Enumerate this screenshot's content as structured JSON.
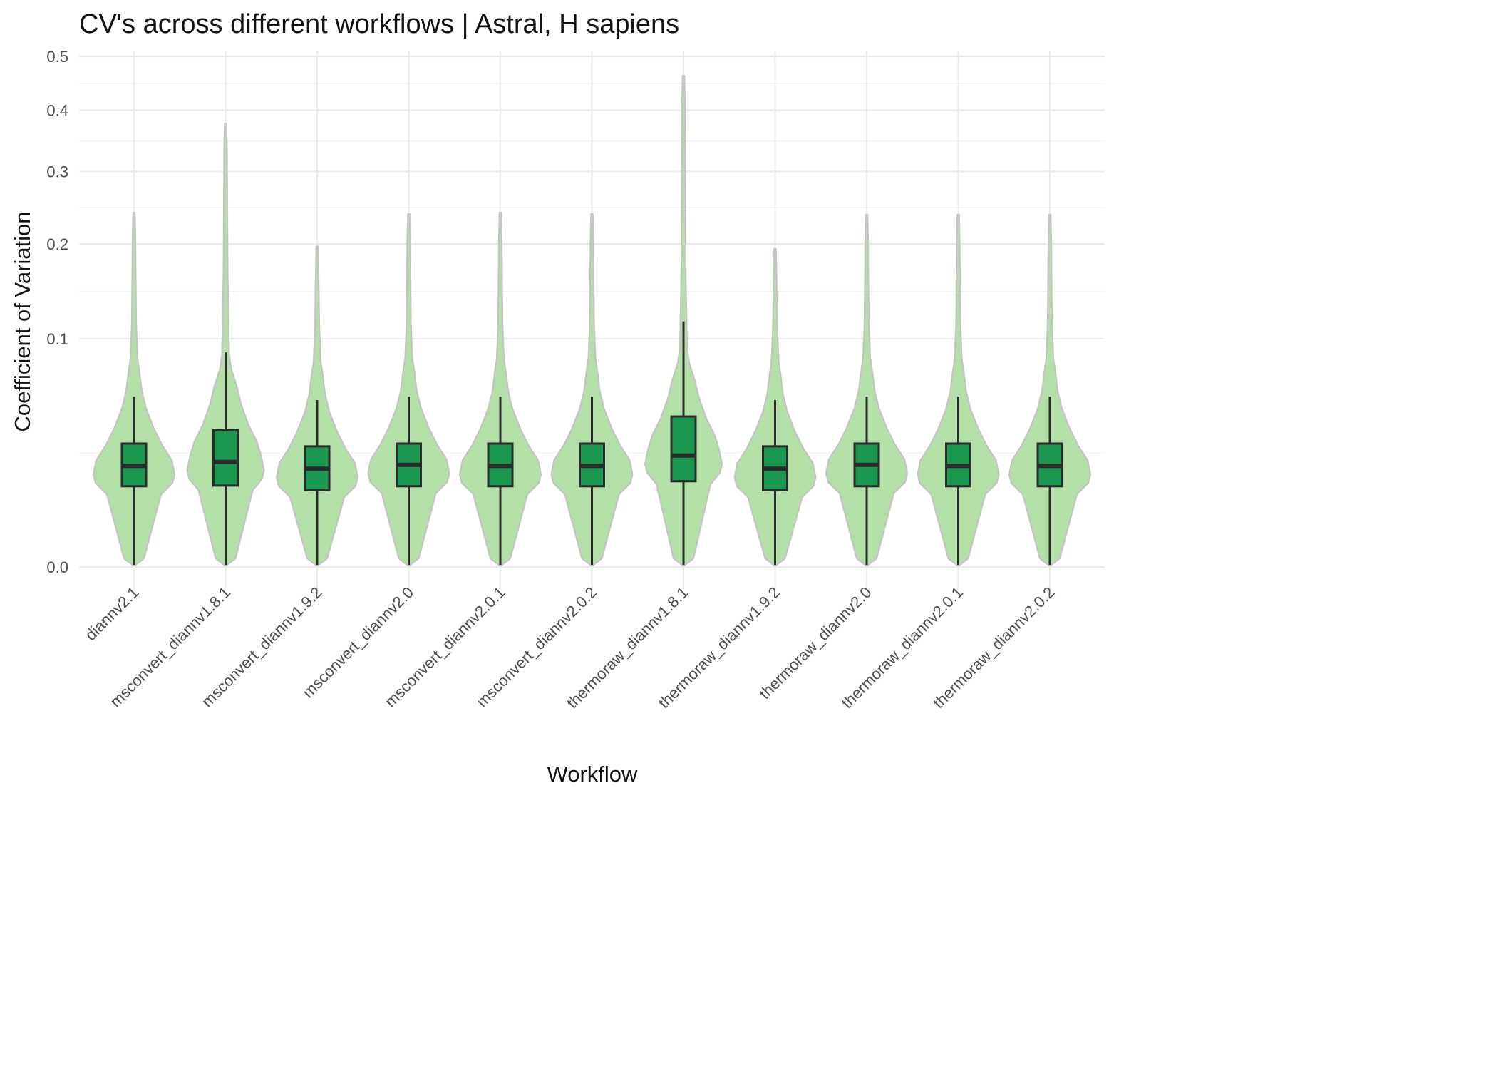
{
  "chart_data": {
    "type": "violin",
    "title": "CV's across different workflows | Astral, H sapiens",
    "xlabel": "Workflow",
    "ylabel": "Coefficient of Variation",
    "y_scale": "sqrt",
    "ylim": [
      0,
      0.5
    ],
    "y_ticks": [
      0.0,
      0.1,
      0.2,
      0.3,
      0.4,
      0.5
    ],
    "y_tick_labels": [
      "0.0",
      "0.1",
      "0.2",
      "0.3",
      "0.4",
      "0.5"
    ],
    "grid": true,
    "legend": "none",
    "colors": {
      "violin_fill": "#b3e0a6",
      "violin_outline": "#c4c4c4",
      "box_fill": "#1a9850",
      "box_outline": "#2b2b2b"
    },
    "categories": [
      "diannv2.1",
      "msconvert_diannv1.8.1",
      "msconvert_diannv1.9.2",
      "msconvert_diannv2.0",
      "msconvert_diannv2.0.1",
      "msconvert_diannv2.0.2",
      "thermoraw_diannv1.8.1",
      "thermoraw_diannv1.9.2",
      "thermoraw_diannv2.0",
      "thermoraw_diannv2.0.1",
      "thermoraw_diannv2.0.2"
    ],
    "series": [
      {
        "min": 0.0,
        "q1": 0.0125,
        "median": 0.0196,
        "q3": 0.0292,
        "whisker_high": 0.0556,
        "max": 0.241
      },
      {
        "min": 0.0,
        "q1": 0.0127,
        "median": 0.0212,
        "q3": 0.0359,
        "whisker_high": 0.0883,
        "max": 0.377
      },
      {
        "min": 0.0,
        "q1": 0.0113,
        "median": 0.0185,
        "q3": 0.0279,
        "whisker_high": 0.0534,
        "max": 0.197
      },
      {
        "min": 0.0,
        "q1": 0.0125,
        "median": 0.02,
        "q3": 0.0292,
        "whisker_high": 0.0556,
        "max": 0.239
      },
      {
        "min": 0.0,
        "q1": 0.0125,
        "median": 0.0196,
        "q3": 0.0292,
        "whisker_high": 0.0556,
        "max": 0.241
      },
      {
        "min": 0.0,
        "q1": 0.0125,
        "median": 0.0196,
        "q3": 0.0292,
        "whisker_high": 0.0556,
        "max": 0.239
      },
      {
        "min": 0.0,
        "q1": 0.0141,
        "median": 0.0238,
        "q3": 0.0434,
        "whisker_high": 0.1157,
        "max": 0.463
      },
      {
        "min": 0.0,
        "q1": 0.0113,
        "median": 0.0185,
        "q3": 0.0279,
        "whisker_high": 0.0534,
        "max": 0.194
      },
      {
        "min": 0.0,
        "q1": 0.0125,
        "median": 0.02,
        "q3": 0.0292,
        "whisker_high": 0.0556,
        "max": 0.238
      },
      {
        "min": 0.0,
        "q1": 0.0125,
        "median": 0.0196,
        "q3": 0.0292,
        "whisker_high": 0.0556,
        "max": 0.238
      },
      {
        "min": 0.0,
        "q1": 0.0125,
        "median": 0.0196,
        "q3": 0.0292,
        "whisker_high": 0.0556,
        "max": 0.238
      }
    ]
  }
}
